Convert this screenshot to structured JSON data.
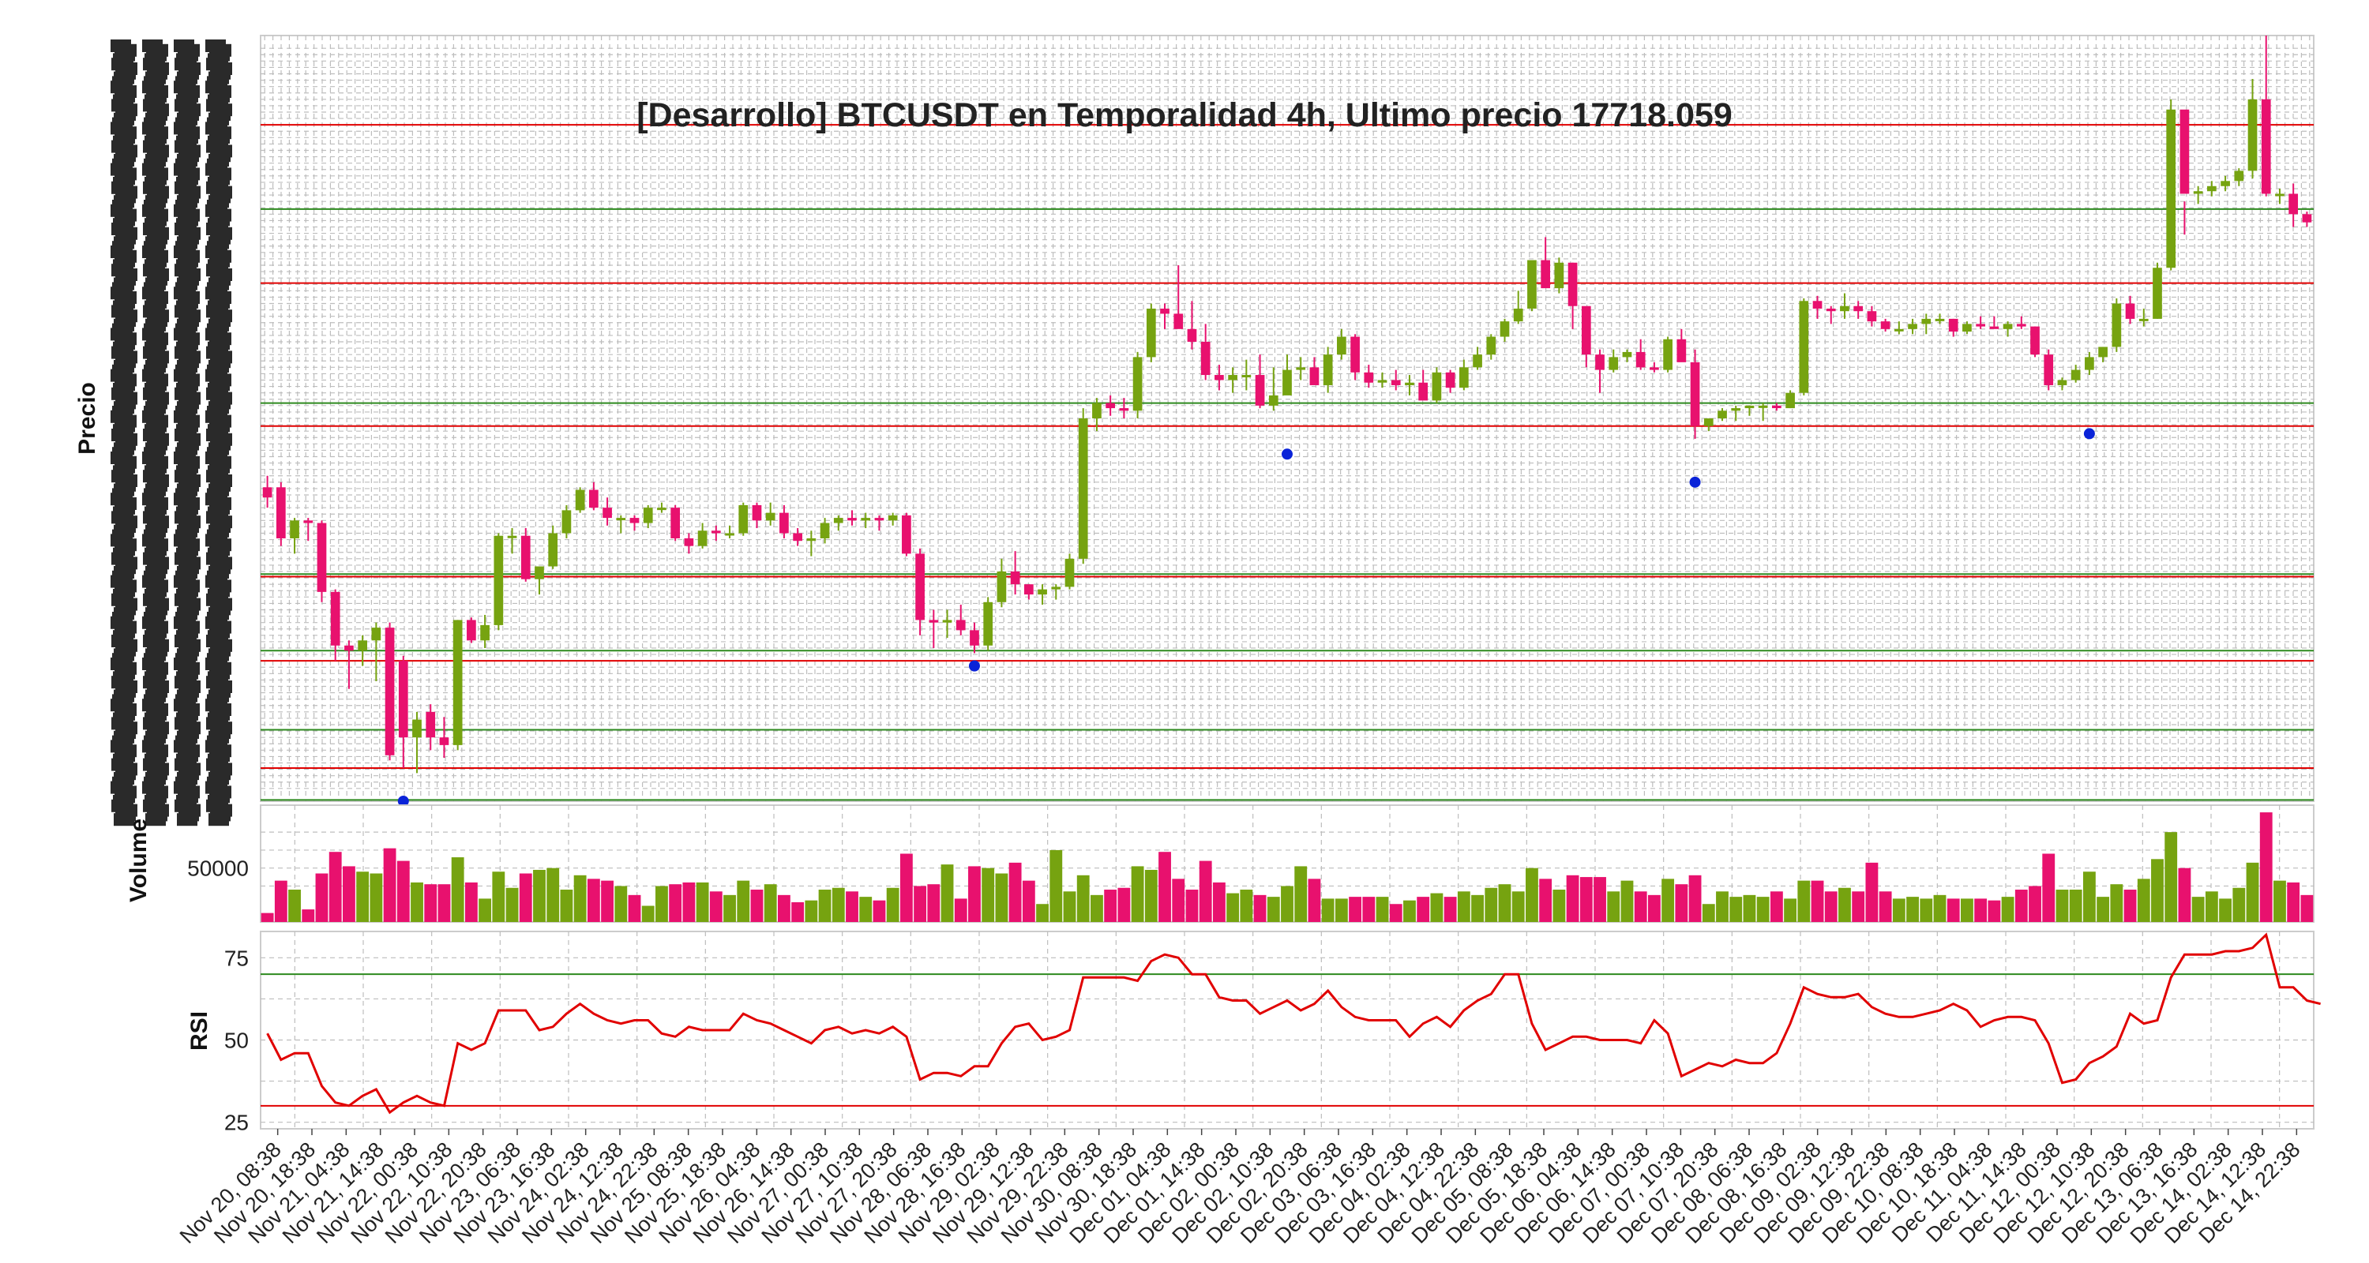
{
  "chart_data": {
    "type": "candlestick",
    "title": "[Desarrollo] BTCUSDT en Temporalidad 4h, Ultimo precio 17718.059",
    "colors": {
      "up": "#76a310",
      "down": "#e8116e",
      "rsi": "#e10000",
      "support": "#2d8a1e",
      "resistance": "#e10000",
      "pivot": "#0a23d8",
      "grid": "#bdbdbd"
    },
    "panels": [
      {
        "ylabel": "Precio",
        "ylim": [
          15450,
          18450
        ]
      },
      {
        "ylabel": "Volume",
        "ticks": [
          50000
        ],
        "ylim": [
          20000,
          85000
        ]
      },
      {
        "ylabel": "RSI",
        "ticks": [
          25,
          50,
          75
        ],
        "ylim": [
          23,
          83
        ],
        "levels": [
          30,
          70
        ]
      }
    ],
    "price_levels": {
      "resistance": [
        18100,
        17480,
        16920,
        16330,
        16000,
        15580
      ],
      "support": [
        17770,
        17010,
        16340,
        16040,
        15730,
        15455
      ]
    },
    "x_tick_labels": [
      "Nov 20, 08:38",
      "Nov 20, 18:38",
      "Nov 21, 04:38",
      "Nov 21, 14:38",
      "Nov 22, 00:38",
      "Nov 22, 10:38",
      "Nov 22, 20:38",
      "Nov 23, 06:38",
      "Nov 23, 16:38",
      "Nov 24, 02:38",
      "Nov 24, 12:38",
      "Nov 24, 22:38",
      "Nov 25, 08:38",
      "Nov 25, 18:38",
      "Nov 26, 04:38",
      "Nov 26, 14:38",
      "Nov 27, 00:38",
      "Nov 27, 10:38",
      "Nov 27, 20:38",
      "Nov 28, 06:38",
      "Nov 28, 16:38",
      "Nov 29, 02:38",
      "Nov 29, 12:38",
      "Nov 29, 22:38",
      "Nov 30, 08:38",
      "Nov 30, 18:38",
      "Dec 01, 04:38",
      "Dec 01, 14:38",
      "Dec 02, 00:38",
      "Dec 02, 10:38",
      "Dec 02, 20:38",
      "Dec 03, 06:38",
      "Dec 03, 16:38",
      "Dec 04, 02:38",
      "Dec 04, 12:38",
      "Dec 04, 22:38",
      "Dec 05, 08:38",
      "Dec 05, 18:38",
      "Dec 06, 04:38",
      "Dec 06, 14:38",
      "Dec 07, 00:38",
      "Dec 07, 10:38",
      "Dec 07, 20:38",
      "Dec 08, 06:38",
      "Dec 08, 16:38",
      "Dec 09, 02:38",
      "Dec 09, 12:38",
      "Dec 09, 22:38",
      "Dec 10, 08:38",
      "Dec 10, 18:38",
      "Dec 11, 04:38",
      "Dec 11, 14:38",
      "Dec 12, 00:38",
      "Dec 12, 10:38",
      "Dec 12, 20:38",
      "Dec 13, 06:38",
      "Dec 13, 16:38",
      "Dec 14, 02:38",
      "Dec 14, 12:38",
      "Dec 14, 22:38"
    ],
    "pivots": [
      {
        "i": 10,
        "y": 15450
      },
      {
        "i": 52,
        "y": 15980
      },
      {
        "i": 75,
        "y": 16810
      },
      {
        "i": 105,
        "y": 16700
      },
      {
        "i": 134,
        "y": 16890
      }
    ],
    "ohlcv": [
      [
        16680,
        16725,
        16600,
        16640,
        25000
      ],
      [
        16680,
        16700,
        16450,
        16480,
        43000
      ],
      [
        16480,
        16560,
        16420,
        16550,
        38000
      ],
      [
        16550,
        16560,
        16470,
        16540,
        27000
      ],
      [
        16540,
        16550,
        16230,
        16270,
        47000
      ],
      [
        16270,
        16280,
        16000,
        16060,
        59000
      ],
      [
        16060,
        16080,
        15890,
        16040,
        51000
      ],
      [
        16040,
        16100,
        15980,
        16080,
        48000
      ],
      [
        16080,
        16150,
        15920,
        16130,
        47000
      ],
      [
        16130,
        16150,
        15610,
        15630,
        61000
      ],
      [
        16000,
        16020,
        15580,
        15700,
        54000
      ],
      [
        15700,
        15800,
        15560,
        15770,
        42000
      ],
      [
        15800,
        15830,
        15650,
        15700,
        41000
      ],
      [
        15700,
        15780,
        15620,
        15670,
        41000
      ],
      [
        15670,
        16160,
        15650,
        16160,
        56000
      ],
      [
        16160,
        16170,
        16070,
        16080,
        42000
      ],
      [
        16080,
        16180,
        16050,
        16140,
        33000
      ],
      [
        16140,
        16500,
        16120,
        16490,
        48000
      ],
      [
        16490,
        16520,
        16420,
        16490,
        39000
      ],
      [
        16490,
        16520,
        16310,
        16320,
        47000
      ],
      [
        16320,
        16370,
        16260,
        16370,
        49000
      ],
      [
        16370,
        16530,
        16360,
        16500,
        50000
      ],
      [
        16500,
        16610,
        16480,
        16590,
        38000
      ],
      [
        16590,
        16680,
        16580,
        16670,
        46000
      ],
      [
        16670,
        16700,
        16590,
        16600,
        44000
      ],
      [
        16600,
        16640,
        16530,
        16560,
        43000
      ],
      [
        16560,
        16570,
        16500,
        16560,
        40000
      ],
      [
        16560,
        16570,
        16510,
        16540,
        35000
      ],
      [
        16540,
        16610,
        16520,
        16600,
        29000
      ],
      [
        16600,
        16620,
        16580,
        16600,
        40000
      ],
      [
        16600,
        16610,
        16470,
        16480,
        41000
      ],
      [
        16480,
        16500,
        16420,
        16450,
        42000
      ],
      [
        16450,
        16540,
        16440,
        16510,
        42000
      ],
      [
        16510,
        16530,
        16470,
        16500,
        37000
      ],
      [
        16500,
        16530,
        16480,
        16500,
        35000
      ],
      [
        16500,
        16620,
        16490,
        16610,
        43000
      ],
      [
        16610,
        16620,
        16520,
        16550,
        38000
      ],
      [
        16550,
        16620,
        16530,
        16580,
        41000
      ],
      [
        16580,
        16610,
        16480,
        16500,
        35000
      ],
      [
        16500,
        16520,
        16450,
        16470,
        31000
      ],
      [
        16470,
        16510,
        16410,
        16480,
        32000
      ],
      [
        16480,
        16560,
        16460,
        16540,
        38000
      ],
      [
        16540,
        16570,
        16510,
        16560,
        39000
      ],
      [
        16560,
        16590,
        16530,
        16550,
        37000
      ],
      [
        16550,
        16580,
        16520,
        16560,
        34000
      ],
      [
        16560,
        16570,
        16510,
        16550,
        32000
      ],
      [
        16550,
        16580,
        16530,
        16570,
        39000
      ],
      [
        16570,
        16580,
        16410,
        16420,
        58000
      ],
      [
        16420,
        16440,
        16100,
        16160,
        40000
      ],
      [
        16160,
        16200,
        16050,
        16150,
        41000
      ],
      [
        16150,
        16200,
        16090,
        16160,
        52000
      ],
      [
        16160,
        16220,
        16100,
        16120,
        33000
      ],
      [
        16120,
        16150,
        16030,
        16060,
        51000
      ],
      [
        16060,
        16250,
        16040,
        16230,
        50000
      ],
      [
        16230,
        16400,
        16210,
        16350,
        47000
      ],
      [
        16350,
        16430,
        16260,
        16300,
        53000
      ],
      [
        16300,
        16300,
        16240,
        16260,
        43000
      ],
      [
        16260,
        16300,
        16220,
        16280,
        30000
      ],
      [
        16280,
        16300,
        16240,
        16290,
        60000
      ],
      [
        16290,
        16420,
        16280,
        16400,
        37000
      ],
      [
        16400,
        16990,
        16380,
        16950,
        46000
      ],
      [
        16950,
        17030,
        16900,
        17010,
        35000
      ],
      [
        17010,
        17040,
        16960,
        16990,
        38000
      ],
      [
        16990,
        17030,
        16950,
        16980,
        39000
      ],
      [
        16980,
        17210,
        16950,
        17190,
        51000
      ],
      [
        17190,
        17400,
        17170,
        17380,
        49000
      ],
      [
        17380,
        17400,
        17300,
        17360,
        59000
      ],
      [
        17360,
        17550,
        17340,
        17300,
        44000
      ],
      [
        17300,
        17410,
        17220,
        17250,
        38000
      ],
      [
        17250,
        17320,
        17100,
        17120,
        54000
      ],
      [
        17120,
        17160,
        17060,
        17100,
        42000
      ],
      [
        17100,
        17150,
        17050,
        17120,
        36000
      ],
      [
        17120,
        17180,
        17060,
        17120,
        38000
      ],
      [
        17120,
        17200,
        16990,
        17000,
        35000
      ],
      [
        17000,
        17150,
        16980,
        17040,
        34000
      ],
      [
        17040,
        17200,
        17050,
        17140,
        40000
      ],
      [
        17140,
        17190,
        17100,
        17150,
        51000
      ],
      [
        17150,
        17190,
        17090,
        17080,
        44000
      ],
      [
        17080,
        17230,
        17050,
        17200,
        33000
      ],
      [
        17200,
        17300,
        17180,
        17270,
        33000
      ],
      [
        17270,
        17280,
        17100,
        17130,
        34000
      ],
      [
        17130,
        17160,
        17070,
        17090,
        34000
      ],
      [
        17090,
        17130,
        17070,
        17100,
        34000
      ],
      [
        17100,
        17140,
        17060,
        17080,
        30000
      ],
      [
        17080,
        17120,
        17040,
        17090,
        32000
      ],
      [
        17090,
        17140,
        17040,
        17020,
        34000
      ],
      [
        17020,
        17150,
        17010,
        17130,
        36000
      ],
      [
        17130,
        17140,
        17050,
        17070,
        34000
      ],
      [
        17070,
        17180,
        17060,
        17150,
        37000
      ],
      [
        17150,
        17230,
        17140,
        17200,
        35000
      ],
      [
        17200,
        17280,
        17180,
        17270,
        39000
      ],
      [
        17270,
        17340,
        17250,
        17330,
        41000
      ],
      [
        17330,
        17450,
        17320,
        17380,
        37000
      ],
      [
        17380,
        17560,
        17370,
        17570,
        50000
      ],
      [
        17570,
        17660,
        17520,
        17460,
        44000
      ],
      [
        17460,
        17580,
        17440,
        17560,
        38000
      ],
      [
        17560,
        17560,
        17300,
        17390,
        46000
      ],
      [
        17390,
        17320,
        17150,
        17200,
        45000
      ],
      [
        17200,
        17220,
        17050,
        17140,
        45000
      ],
      [
        17140,
        17220,
        17130,
        17190,
        37000
      ],
      [
        17190,
        17220,
        17170,
        17210,
        43000
      ],
      [
        17210,
        17260,
        17140,
        17150,
        37000
      ],
      [
        17150,
        17170,
        17130,
        17140,
        35000
      ],
      [
        17140,
        17270,
        17130,
        17260,
        44000
      ],
      [
        17260,
        17300,
        17180,
        17170,
        41000
      ],
      [
        17170,
        17220,
        16870,
        16920,
        46000
      ],
      [
        16920,
        16950,
        16900,
        16950,
        30000
      ],
      [
        16950,
        16990,
        16940,
        16980,
        37000
      ],
      [
        16980,
        17000,
        16940,
        16990,
        34000
      ],
      [
        16990,
        17000,
        16960,
        17000,
        35000
      ],
      [
        17000,
        17010,
        16940,
        17000,
        34000
      ],
      [
        17000,
        17010,
        16980,
        16990,
        37000
      ],
      [
        16990,
        17060,
        16990,
        17050,
        33000
      ],
      [
        17050,
        17420,
        17040,
        17410,
        43000
      ],
      [
        17410,
        17430,
        17340,
        17380,
        43000
      ],
      [
        17380,
        17390,
        17320,
        17370,
        37000
      ],
      [
        17370,
        17440,
        17340,
        17390,
        39000
      ],
      [
        17390,
        17410,
        17340,
        17370,
        37000
      ],
      [
        17370,
        17390,
        17310,
        17330,
        53000
      ],
      [
        17330,
        17340,
        17290,
        17300,
        37000
      ],
      [
        17300,
        17330,
        17280,
        17300,
        33000
      ],
      [
        17300,
        17340,
        17280,
        17320,
        34000
      ],
      [
        17320,
        17360,
        17280,
        17340,
        33000
      ],
      [
        17340,
        17360,
        17320,
        17340,
        35000
      ],
      [
        17340,
        17340,
        17270,
        17290,
        33000
      ],
      [
        17290,
        17330,
        17280,
        17320,
        33000
      ],
      [
        17320,
        17350,
        17300,
        17310,
        33000
      ],
      [
        17310,
        17350,
        17310,
        17300,
        32000
      ],
      [
        17300,
        17330,
        17270,
        17320,
        34000
      ],
      [
        17320,
        17350,
        17300,
        17310,
        38000
      ],
      [
        17310,
        17310,
        17190,
        17200,
        40000
      ],
      [
        17200,
        17220,
        17060,
        17080,
        58000
      ],
      [
        17080,
        17110,
        17060,
        17100,
        38000
      ],
      [
        17100,
        17160,
        17090,
        17140,
        38000
      ],
      [
        17140,
        17210,
        17120,
        17190,
        48000
      ],
      [
        17190,
        17230,
        17170,
        17230,
        34000
      ],
      [
        17230,
        17420,
        17210,
        17400,
        41000
      ],
      [
        17400,
        17430,
        17320,
        17340,
        38000
      ],
      [
        17340,
        17380,
        17310,
        17340,
        44000
      ],
      [
        17340,
        17560,
        17340,
        17540,
        55000
      ],
      [
        17540,
        18200,
        17530,
        18160,
        70000
      ],
      [
        18160,
        17800,
        17670,
        17830,
        50000
      ],
      [
        17830,
        17860,
        17790,
        17840,
        34000
      ],
      [
        17840,
        17880,
        17820,
        17860,
        37000
      ],
      [
        17860,
        17900,
        17840,
        17880,
        33000
      ],
      [
        17880,
        17930,
        17860,
        17920,
        39000
      ],
      [
        17920,
        18280,
        17890,
        18200,
        53000
      ],
      [
        18200,
        18450,
        17820,
        17830,
        81000
      ],
      [
        17830,
        17850,
        17790,
        17830,
        43000
      ],
      [
        17830,
        17870,
        17700,
        17750,
        42000
      ],
      [
        17750,
        17760,
        17700,
        17718,
        35000
      ]
    ],
    "rsi": [
      52,
      44,
      46,
      46,
      36,
      31,
      30,
      33,
      35,
      28,
      31,
      33,
      31,
      30,
      49,
      47,
      49,
      59,
      59,
      59,
      53,
      54,
      58,
      61,
      58,
      56,
      55,
      56,
      56,
      52,
      51,
      54,
      53,
      53,
      53,
      58,
      56,
      55,
      53,
      51,
      49,
      53,
      54,
      52,
      53,
      52,
      54,
      51,
      38,
      40,
      40,
      39,
      42,
      42,
      49,
      54,
      55,
      50,
      51,
      53,
      69,
      69,
      69,
      69,
      68,
      74,
      76,
      75,
      70,
      70,
      63,
      62,
      62,
      58,
      60,
      62,
      59,
      61,
      65,
      60,
      57,
      56,
      56,
      56,
      51,
      55,
      57,
      54,
      59,
      62,
      64,
      70,
      70,
      55,
      47,
      49,
      51,
      51,
      50,
      50,
      50,
      49,
      56,
      52,
      39,
      41,
      43,
      42,
      44,
      43,
      43,
      46,
      55,
      66,
      64,
      63,
      63,
      64,
      60,
      58,
      57,
      57,
      58,
      59,
      61,
      59,
      54,
      56,
      57,
      57,
      56,
      49,
      37,
      38,
      43,
      45,
      48,
      58,
      55,
      56,
      69,
      76,
      76,
      76,
      77,
      77,
      78,
      82,
      66,
      66,
      62,
      61
    ]
  }
}
